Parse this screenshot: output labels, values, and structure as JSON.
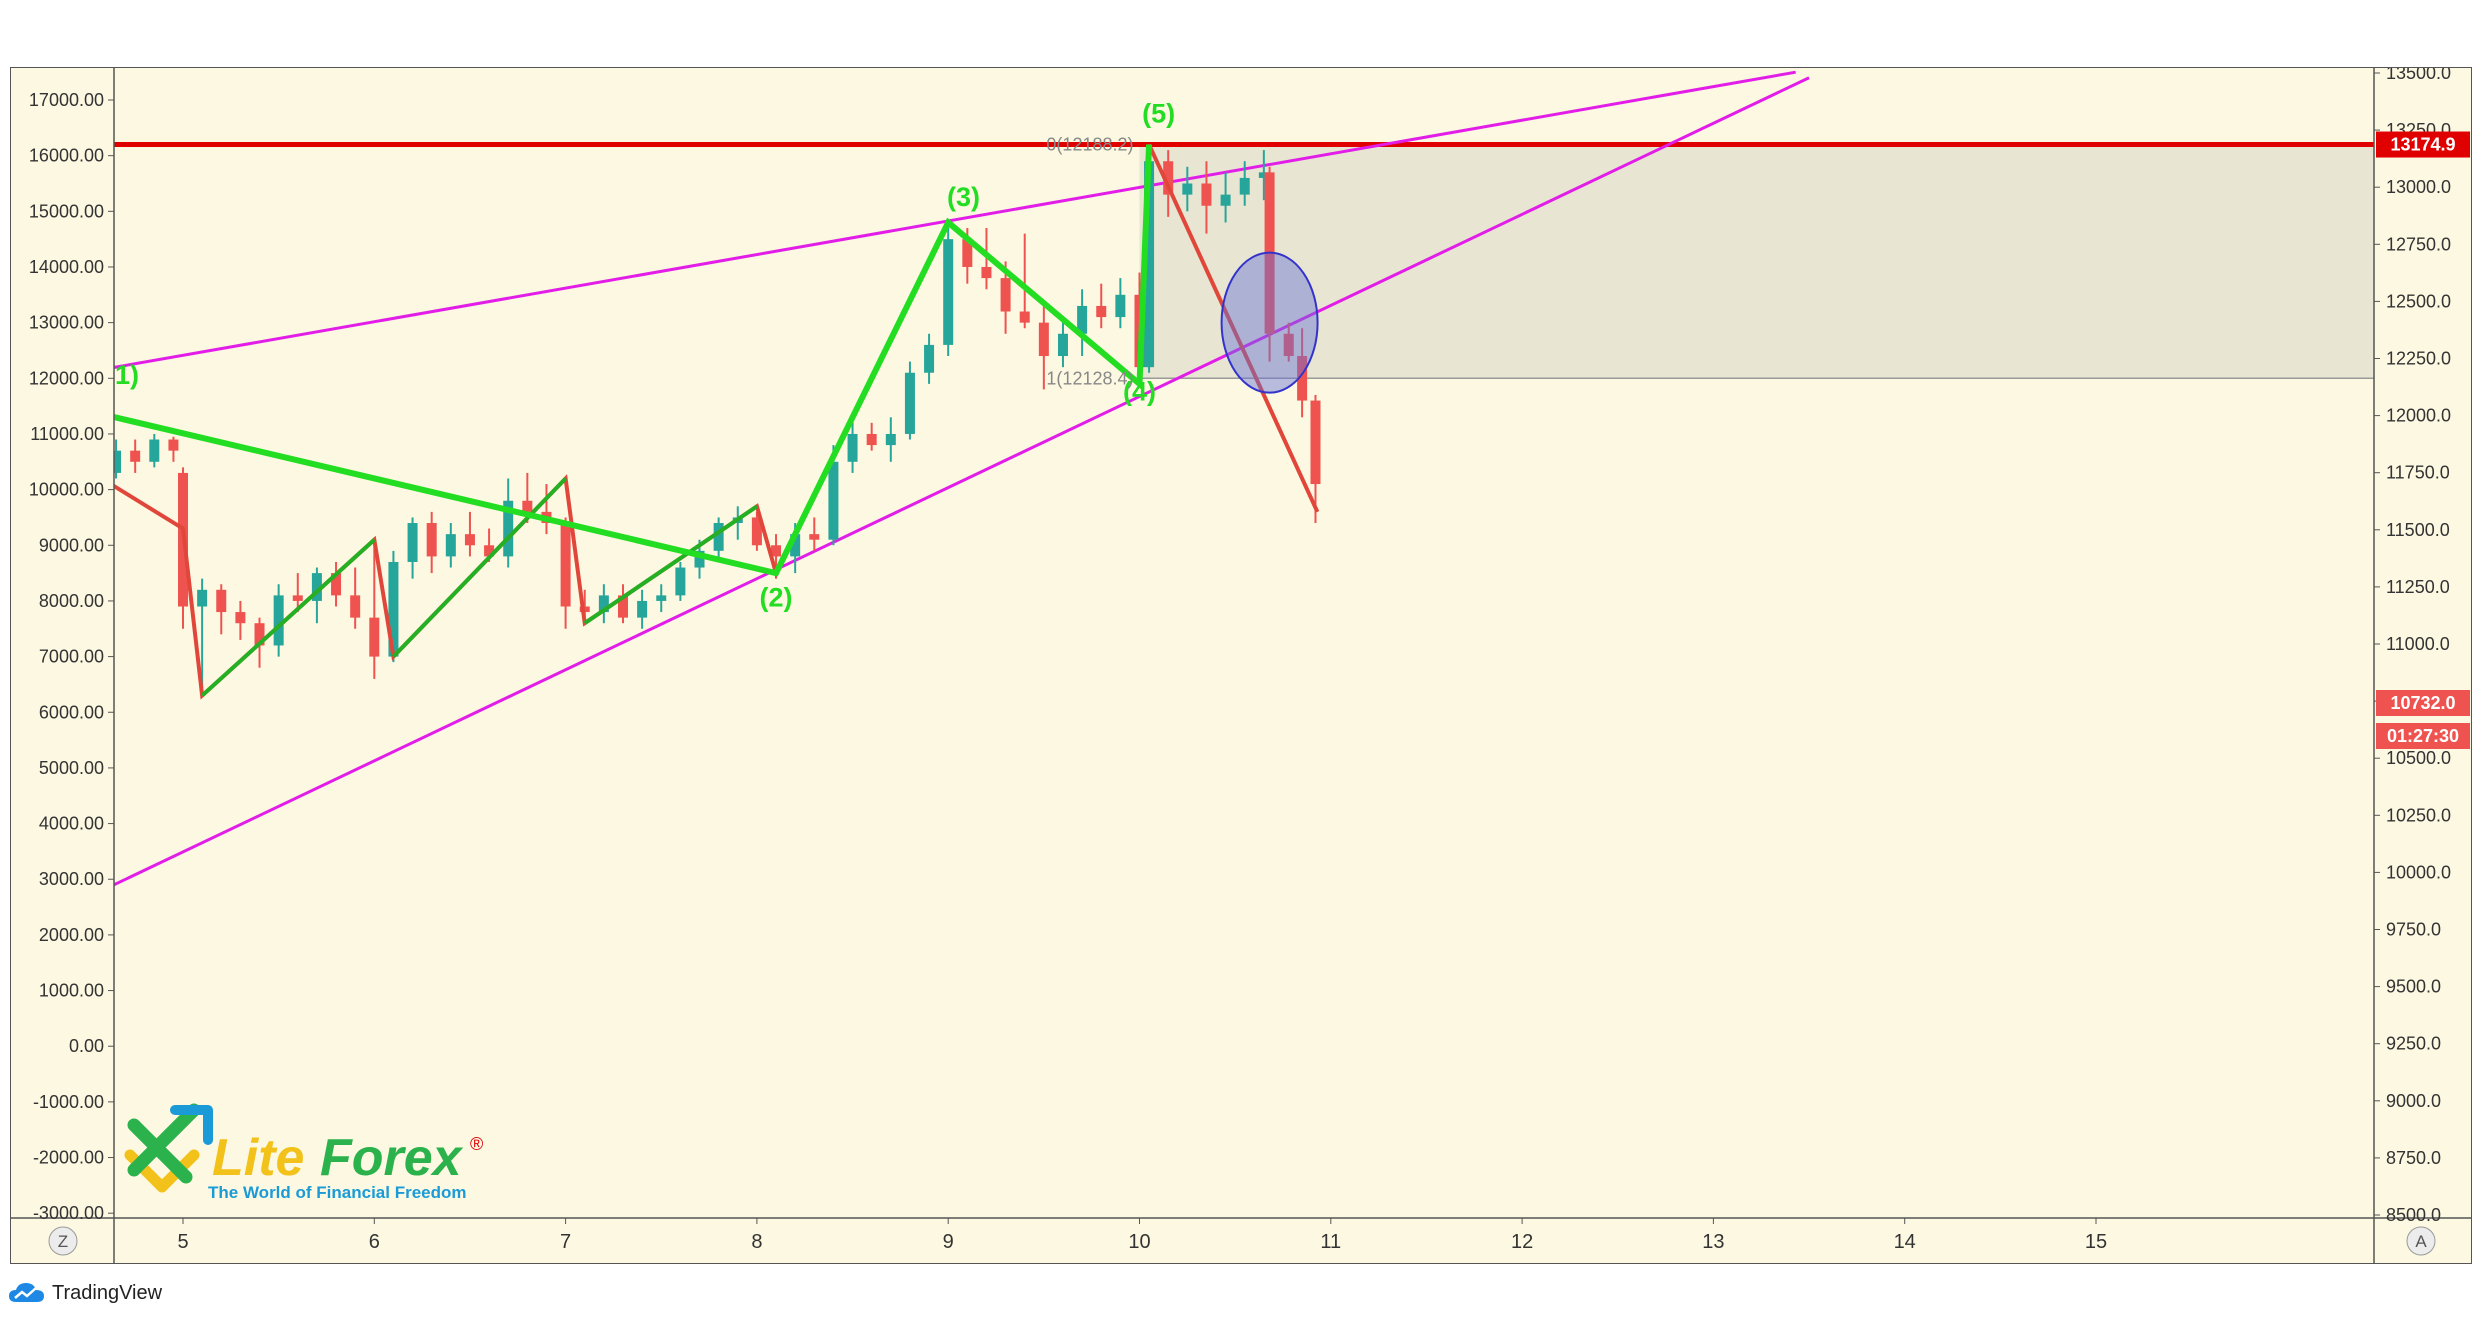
{
  "footer": {
    "brand": "TradingView",
    "icon": "tradingview-cloud-icon"
  },
  "logo": {
    "name_part1": "Lite",
    "name_part2": "Forex",
    "registered": "®",
    "tagline": "The World of Financial Freedom",
    "colors": {
      "green": "#2bb24c",
      "blue": "#1a9bd7",
      "yellow": "#f2c21b"
    }
  },
  "corner_buttons": {
    "left": "Z",
    "right": "A"
  },
  "price_tags": {
    "level": "13174.9",
    "last": "10732.0",
    "timer": "01:27:30"
  },
  "fib_labels": {
    "top": "0(12188.2)",
    "bottom": "1(12128.4)"
  },
  "wave_labels": [
    "(2)",
    "(3)",
    "(4)",
    "(5)"
  ],
  "colors": {
    "background": "#fdf8e2",
    "up": "#26a69a",
    "down": "#ef5350",
    "wedge": "#e21de8",
    "wave": "#22dd22",
    "zigzag": "#e0473a",
    "level": "#e00000",
    "fib_zone": "#e4e2cf",
    "ellipse": "#3333cc"
  },
  "chart_data": {
    "type": "candlestick",
    "x_ticks": [
      "5",
      "6",
      "7",
      "8",
      "9",
      "10",
      "11",
      "12",
      "13",
      "14",
      "15"
    ],
    "left_axis": {
      "ticks": [
        "17000.00",
        "16000.00",
        "15000.00",
        "14000.00",
        "13000.00",
        "12000.00",
        "11000.00",
        "10000.00",
        "9000.00",
        "8000.00",
        "7000.00",
        "6000.00",
        "5000.00",
        "4000.00",
        "3000.00",
        "2000.00",
        "1000.00",
        "0.00",
        "-1000.00",
        "-2000.00",
        "-3000.00"
      ]
    },
    "right_axis": {
      "ticks": [
        "13500.0",
        "13250.0",
        "13000.0",
        "12750.0",
        "12500.0",
        "12250.0",
        "12000.0",
        "11750.0",
        "11500.0",
        "11250.0",
        "11000.0",
        "10750.0",
        "10500.0",
        "10250.0",
        "10000.0",
        "9750.0",
        "9500.0",
        "9250.0",
        "9000.0",
        "8750.0",
        "8500.0"
      ],
      "range": [
        8500,
        13500
      ]
    },
    "candles": [
      [
        4.15,
        11100,
        11300,
        10400,
        10600
      ],
      [
        4.25,
        10600,
        10700,
        9700,
        9900
      ],
      [
        4.35,
        9900,
        10600,
        9800,
        10200
      ],
      [
        4.45,
        10200,
        10400,
        9600,
        9800
      ],
      [
        4.55,
        9800,
        10500,
        9300,
        10300
      ],
      [
        4.65,
        10300,
        10900,
        10200,
        10700
      ],
      [
        4.75,
        10700,
        10900,
        10300,
        10500
      ],
      [
        4.85,
        10500,
        11000,
        10400,
        10900
      ],
      [
        4.95,
        10900,
        10950,
        10500,
        10700
      ],
      [
        5.0,
        10300,
        10400,
        7500,
        7900
      ],
      [
        5.1,
        7900,
        8400,
        6300,
        8200
      ],
      [
        5.2,
        8200,
        8300,
        7400,
        7800
      ],
      [
        5.3,
        7800,
        8000,
        7300,
        7600
      ],
      [
        5.4,
        7600,
        7700,
        6800,
        7200
      ],
      [
        5.5,
        7200,
        8300,
        7000,
        8100
      ],
      [
        5.6,
        8100,
        8500,
        7800,
        8000
      ],
      [
        5.7,
        8000,
        8600,
        7600,
        8500
      ],
      [
        5.8,
        8500,
        8700,
        7900,
        8100
      ],
      [
        5.9,
        8100,
        8600,
        7500,
        7700
      ],
      [
        6.0,
        7700,
        9100,
        6600,
        7000
      ],
      [
        6.1,
        7000,
        8900,
        6900,
        8700
      ],
      [
        6.2,
        8700,
        9500,
        8400,
        9400
      ],
      [
        6.3,
        9400,
        9600,
        8500,
        8800
      ],
      [
        6.4,
        8800,
        9400,
        8600,
        9200
      ],
      [
        6.5,
        9200,
        9600,
        8800,
        9000
      ],
      [
        6.6,
        9000,
        9300,
        8700,
        8800
      ],
      [
        6.7,
        8800,
        10200,
        8600,
        9800
      ],
      [
        6.8,
        9800,
        10300,
        9400,
        9600
      ],
      [
        6.9,
        9600,
        10100,
        9200,
        9400
      ],
      [
        7.0,
        9400,
        9500,
        7500,
        7900
      ],
      [
        7.1,
        7900,
        8200,
        7600,
        7800
      ],
      [
        7.2,
        7800,
        8300,
        7600,
        8100
      ],
      [
        7.3,
        8100,
        8300,
        7600,
        7700
      ],
      [
        7.4,
        7700,
        8200,
        7500,
        8000
      ],
      [
        7.5,
        8000,
        8300,
        7800,
        8100
      ],
      [
        7.6,
        8100,
        8700,
        8000,
        8600
      ],
      [
        7.7,
        8600,
        9100,
        8400,
        8900
      ],
      [
        7.8,
        8900,
        9500,
        8700,
        9400
      ],
      [
        7.9,
        9400,
        9700,
        9100,
        9500
      ],
      [
        8.0,
        9500,
        9600,
        8900,
        9000
      ],
      [
        8.1,
        9000,
        9200,
        8400,
        8800
      ],
      [
        8.2,
        8800,
        9400,
        8500,
        9200
      ],
      [
        8.3,
        9200,
        9500,
        8900,
        9100
      ],
      [
        8.4,
        9100,
        10800,
        9000,
        10500
      ],
      [
        8.5,
        10500,
        11300,
        10300,
        11000
      ],
      [
        8.6,
        11000,
        11200,
        10700,
        10800
      ],
      [
        8.7,
        10800,
        11300,
        10500,
        11000
      ],
      [
        8.8,
        11000,
        12300,
        10900,
        12100
      ],
      [
        8.9,
        12100,
        12800,
        11900,
        12600
      ],
      [
        9.0,
        12600,
        14800,
        12400,
        14500
      ],
      [
        9.1,
        14500,
        14700,
        13700,
        14000
      ],
      [
        9.2,
        14000,
        14700,
        13600,
        13800
      ],
      [
        9.3,
        13800,
        14100,
        12800,
        13200
      ],
      [
        9.4,
        13200,
        14600,
        12900,
        13000
      ],
      [
        9.5,
        13000,
        13400,
        11800,
        12400
      ],
      [
        9.6,
        12400,
        13100,
        12200,
        12800
      ],
      [
        9.7,
        12800,
        13600,
        12400,
        13300
      ],
      [
        9.8,
        13300,
        13700,
        12900,
        13100
      ],
      [
        9.9,
        13100,
        13800,
        12900,
        13500
      ],
      [
        10.0,
        13500,
        13900,
        11900,
        12200
      ],
      [
        10.05,
        12200,
        16200,
        12100,
        15900
      ],
      [
        10.15,
        15900,
        16100,
        14900,
        15300
      ],
      [
        10.25,
        15300,
        15800,
        15000,
        15500
      ],
      [
        10.35,
        15500,
        15900,
        14600,
        15100
      ],
      [
        10.45,
        15100,
        15700,
        14800,
        15300
      ],
      [
        10.55,
        15300,
        15900,
        15100,
        15600
      ],
      [
        10.65,
        15600,
        16100,
        15200,
        15700
      ],
      [
        10.68,
        15700,
        15800,
        12300,
        12800
      ],
      [
        10.78,
        12800,
        13000,
        12300,
        12400
      ],
      [
        10.85,
        12400,
        12900,
        11300,
        11600
      ],
      [
        10.92,
        11600,
        11700,
        9400,
        10100
      ]
    ],
    "annotations": {
      "resistance_level": 13174.9,
      "last_price": 10732.0,
      "countdown": "01:27:30"
    }
  }
}
